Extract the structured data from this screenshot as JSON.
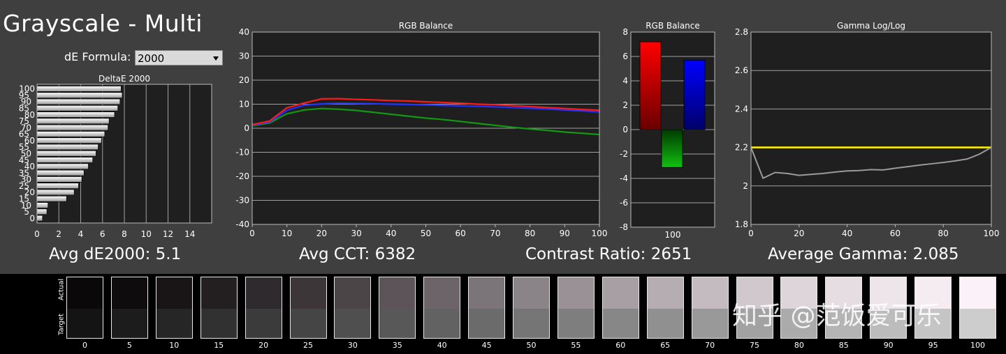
{
  "title": "Grayscale - Multi",
  "de_formula": {
    "label": "dE Formula:",
    "value": "2000"
  },
  "stats": {
    "avg_de": "Avg dE2000: 5.1",
    "avg_cct": "Avg CCT: 6382",
    "contrast": "Contrast Ratio: 2651",
    "avg_gamma": "Average Gamma: 2.085"
  },
  "watermark": "知乎 @范饭爱可乐",
  "swatch_strip": {
    "actual_label": "Actual",
    "target_label": "Target",
    "levels": [
      "0",
      "5",
      "10",
      "15",
      "20",
      "25",
      "30",
      "35",
      "40",
      "45",
      "50",
      "55",
      "60",
      "65",
      "70",
      "75",
      "80",
      "85",
      "90",
      "95",
      "100"
    ],
    "actual_colors": [
      "#0a0809",
      "#0f0c0d",
      "#191516",
      "#231f21",
      "#2f2a2d",
      "#3d3639",
      "#4c4548",
      "#5c5458",
      "#6c6468",
      "#7b7478",
      "#8a8388",
      "#999196",
      "#a79fa4",
      "#b5adb2",
      "#c3bbc0",
      "#d0c8cd",
      "#ddd5da",
      "#e6dde3",
      "#eee5eb",
      "#f5ecf2",
      "#faf2f8"
    ],
    "target_colors": [
      "#141414",
      "#1c1c1c",
      "#262626",
      "#313131",
      "#3b3b3b",
      "#454545",
      "#4f4f4f",
      "#585858",
      "#626262",
      "#6b6b6b",
      "#757575",
      "#7e7e7e",
      "#878787",
      "#909090",
      "#999999",
      "#a2a2a2",
      "#ababab",
      "#b4b4b4",
      "#bcbcbc",
      "#c5c5c5",
      "#cdcdcd"
    ]
  },
  "chart_data": [
    {
      "type": "bar",
      "orientation": "horizontal",
      "title": "DeltaE 2000",
      "categories": [
        "0",
        "5",
        "10",
        "15",
        "20",
        "25",
        "30",
        "35",
        "40",
        "45",
        "50",
        "55",
        "60",
        "65",
        "70",
        "75",
        "80",
        "85",
        "90",
        "95",
        "100"
      ],
      "values": [
        0.5,
        0.9,
        1.0,
        2.7,
        3.4,
        3.8,
        4.1,
        4.3,
        4.7,
        5.1,
        5.4,
        5.6,
        5.9,
        6.2,
        6.5,
        6.6,
        7.1,
        7.4,
        7.6,
        7.8,
        7.7
      ],
      "xlim": [
        0,
        16
      ],
      "xticks": [
        "0",
        "2",
        "4",
        "6",
        "8",
        "10",
        "12",
        "14"
      ],
      "grid": true
    },
    {
      "type": "line",
      "title": "RGB Balance",
      "x": [
        0,
        5,
        10,
        15,
        20,
        25,
        30,
        35,
        40,
        45,
        50,
        55,
        60,
        65,
        70,
        75,
        80,
        85,
        90,
        95,
        100
      ],
      "series": [
        {
          "color": "#ff1a1a",
          "values": [
            1.5,
            3.0,
            8.5,
            10.5,
            12.2,
            12.3,
            12.0,
            11.8,
            11.5,
            11.3,
            11.0,
            10.7,
            10.4,
            10.0,
            9.8,
            9.4,
            9.0,
            8.6,
            8.2,
            7.8,
            7.5
          ]
        },
        {
          "color": "#2233ff",
          "values": [
            1.2,
            2.6,
            7.5,
            9.6,
            10.1,
            10.4,
            10.3,
            10.2,
            10.0,
            9.9,
            9.7,
            9.5,
            9.3,
            9.1,
            8.9,
            8.6,
            8.3,
            8.0,
            7.6,
            7.2,
            6.8
          ]
        },
        {
          "color": "#119911",
          "values": [
            1.0,
            2.2,
            6.0,
            7.6,
            8.2,
            7.9,
            7.4,
            6.6,
            5.8,
            5.0,
            4.2,
            3.6,
            2.8,
            2.0,
            1.2,
            0.4,
            -0.3,
            -0.9,
            -1.6,
            -2.1,
            -2.6
          ]
        }
      ],
      "ylim": [
        -40,
        40
      ],
      "yticks": [
        "-40",
        "-30",
        "-20",
        "-10",
        "0",
        "10",
        "20",
        "30",
        "40"
      ],
      "xticks": [
        "0",
        "10",
        "20",
        "30",
        "40",
        "50",
        "60",
        "70",
        "80",
        "90",
        "100"
      ],
      "grid": true
    },
    {
      "type": "bar",
      "title": "RGB Balance",
      "categories": [
        "100"
      ],
      "series": [
        {
          "color": "#ff1a1a",
          "values": [
            7.2
          ]
        },
        {
          "color": "#119911",
          "values": [
            -3.1
          ]
        },
        {
          "color": "#2233ff",
          "values": [
            5.7
          ]
        }
      ],
      "ylim": [
        -8,
        8
      ],
      "yticks": [
        "-8",
        "-6",
        "-4",
        "-2",
        "0",
        "2",
        "4",
        "6",
        "8"
      ],
      "grid": true
    },
    {
      "type": "line",
      "title": "Gamma Log/Log",
      "x": [
        0,
        5,
        10,
        15,
        20,
        25,
        30,
        35,
        40,
        45,
        50,
        55,
        60,
        65,
        70,
        75,
        80,
        85,
        90,
        95,
        100
      ],
      "series": [
        {
          "color": "#ffee00",
          "values": [
            2.2,
            2.2,
            2.2,
            2.2,
            2.2,
            2.2,
            2.2,
            2.2,
            2.2,
            2.2,
            2.2,
            2.2,
            2.2,
            2.2,
            2.2,
            2.2,
            2.2,
            2.2,
            2.2,
            2.2,
            2.2
          ]
        },
        {
          "color": "#9a9a9a",
          "values": [
            2.2,
            2.04,
            2.07,
            2.065,
            2.055,
            2.06,
            2.065,
            2.072,
            2.078,
            2.08,
            2.085,
            2.083,
            2.092,
            2.1,
            2.108,
            2.115,
            2.122,
            2.13,
            2.14,
            2.165,
            2.2
          ]
        }
      ],
      "ylim": [
        1.8,
        2.8
      ],
      "yticks": [
        "1.8",
        "2",
        "2.2",
        "2.4",
        "2.6",
        "2.8"
      ],
      "xticks": [
        "0",
        "20",
        "40",
        "60",
        "80",
        "100"
      ],
      "grid": true
    }
  ]
}
